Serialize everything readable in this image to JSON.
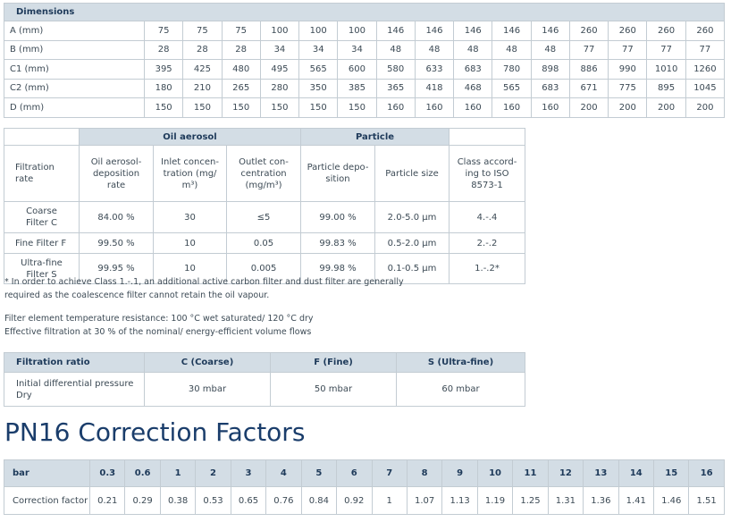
{
  "dimensions": {
    "title": "Dimensions",
    "rows": [
      {
        "label": "A (mm)",
        "values": [
          "75",
          "75",
          "75",
          "100",
          "100",
          "100",
          "146",
          "146",
          "146",
          "146",
          "146",
          "260",
          "260",
          "260",
          "260"
        ]
      },
      {
        "label": "B (mm)",
        "values": [
          "28",
          "28",
          "28",
          "34",
          "34",
          "34",
          "48",
          "48",
          "48",
          "48",
          "48",
          "77",
          "77",
          "77",
          "77"
        ]
      },
      {
        "label": "C1 (mm)",
        "values": [
          "395",
          "425",
          "480",
          "495",
          "565",
          "600",
          "580",
          "633",
          "683",
          "780",
          "898",
          "886",
          "990",
          "1010",
          "1260"
        ]
      },
      {
        "label": "C2 (mm)",
        "values": [
          "180",
          "210",
          "265",
          "280",
          "350",
          "385",
          "365",
          "418",
          "468",
          "565",
          "683",
          "671",
          "775",
          "895",
          "1045"
        ]
      },
      {
        "label": "D (mm)",
        "values": [
          "150",
          "150",
          "150",
          "150",
          "150",
          "150",
          "160",
          "160",
          "160",
          "160",
          "160",
          "200",
          "200",
          "200",
          "200"
        ]
      }
    ]
  },
  "filtration": {
    "group_oil": "Oil aerosol",
    "group_particle": "Particle",
    "col_rate": "Filtration\nrate",
    "col_oil_dep": "Oil aerosol-\ndeposition\nrate",
    "col_inlet": "Inlet concen-\ntration (mg/\nm³)",
    "col_outlet": "Outlet con-\ncentration\n(mg/m³)",
    "col_part_dep": "Particle depo-\nsition",
    "col_part_size": "Particle size",
    "col_class": "Class accord-\ning to ISO\n8573-1",
    "rows": [
      {
        "name": "Coarse\nFilter C",
        "oil_dep": "84.00 %",
        "inlet": "30",
        "outlet": "≤5",
        "part_dep": "99.00 %",
        "size": "2.0-5.0 µm",
        "class": "4.-.4"
      },
      {
        "name": "Fine Filter F",
        "oil_dep": "99.50 %",
        "inlet": "10",
        "outlet": "0.05",
        "part_dep": "99.83 %",
        "size": "0.5-2.0 µm",
        "class": "2.-.2"
      },
      {
        "name": "Ultra-fine\nFilter S",
        "oil_dep": "99.95 %",
        "inlet": "10",
        "outlet": "0.005",
        "part_dep": "99.98 %",
        "size": "0.1-0.5 µm",
        "class": "1.-.2*"
      }
    ]
  },
  "notes": {
    "footnote_line1": "* In order to achieve Class 1.-.1, an additional active carbon filter and dust filter are generally",
    "footnote_line2": "required as the coalescence filter cannot retain the oil vapour.",
    "temp_line": "Filter element temperature resistance: 100 °C wet saturated/ 120 °C dry",
    "eff_line": "Effective filtration at 30 % of the nominal/ energy-efficient volume flows"
  },
  "ratio": {
    "headers": [
      "Filtration ratio",
      "C (Coarse)",
      "F (Fine)",
      "S (Ultra-fine)"
    ],
    "row_label": "Initial differential pressure\nDry",
    "values": [
      "30 mbar",
      "50 mbar",
      "60 mbar"
    ]
  },
  "correction": {
    "title": "PN16 Correction Factors",
    "header_label": "bar",
    "bars": [
      "0.3",
      "0.6",
      "1",
      "2",
      "3",
      "4",
      "5",
      "6",
      "7",
      "8",
      "9",
      "10",
      "11",
      "12",
      "13",
      "14",
      "15",
      "16"
    ],
    "row_label": "Correction factor",
    "factors": [
      "0.21",
      "0.29",
      "0.38",
      "0.53",
      "0.65",
      "0.76",
      "0.84",
      "0.92",
      "1",
      "1.07",
      "1.13",
      "1.19",
      "1.25",
      "1.31",
      "1.36",
      "1.41",
      "1.46",
      "1.51"
    ]
  }
}
